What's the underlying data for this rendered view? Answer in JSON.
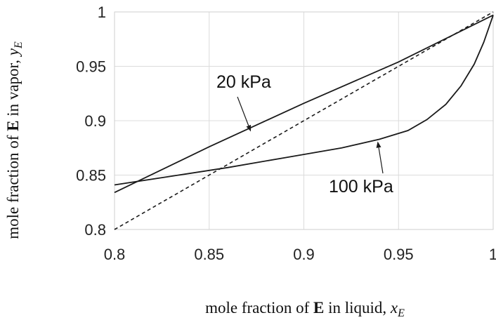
{
  "chart_data": {
    "type": "line",
    "title": "",
    "xlabel": {
      "prefix": "mole fraction of ",
      "bold": "E",
      "mid": " in liquid, ",
      "var": "x",
      "sub": "E"
    },
    "ylabel": {
      "prefix": "mole fraction of ",
      "bold": "E",
      "mid": " in vapor, ",
      "var": "y",
      "sub": "E"
    },
    "xlim": [
      0.8,
      1.0
    ],
    "ylim": [
      0.8,
      1.0
    ],
    "xticks": [
      0.8,
      0.85,
      0.9,
      0.95,
      1.0
    ],
    "yticks": [
      0.8,
      0.85,
      0.9,
      0.95,
      1.0
    ],
    "xtick_labels": [
      "0.8",
      "0.85",
      "0.9",
      "0.95",
      "1"
    ],
    "ytick_labels": [
      "0.8",
      "0.85",
      "0.9",
      "0.95",
      "1"
    ],
    "grid": true,
    "series": [
      {
        "name": "20 kPa",
        "style": "solid",
        "x": [
          0.8,
          0.85,
          0.9,
          0.95,
          1.0
        ],
        "y": [
          0.834,
          0.876,
          0.916,
          0.954,
          0.997
        ]
      },
      {
        "name": "100 kPa",
        "style": "solid",
        "x": [
          0.8,
          0.83,
          0.86,
          0.89,
          0.92,
          0.94,
          0.955,
          0.965,
          0.975,
          0.983,
          0.99,
          0.995,
          1.0
        ],
        "y": [
          0.841,
          0.849,
          0.857,
          0.866,
          0.875,
          0.883,
          0.891,
          0.901,
          0.915,
          0.932,
          0.952,
          0.972,
          0.997
        ]
      },
      {
        "name": "",
        "style": "dashed",
        "x": [
          0.8,
          1.0
        ],
        "y": [
          0.8,
          1.0
        ]
      }
    ],
    "annotations": [
      {
        "text": "20 kPa",
        "points_to": {
          "x": 0.872,
          "y": 0.89
        }
      },
      {
        "text": "100 kPa",
        "points_to": {
          "x": 0.939,
          "y": 0.881
        }
      }
    ]
  }
}
